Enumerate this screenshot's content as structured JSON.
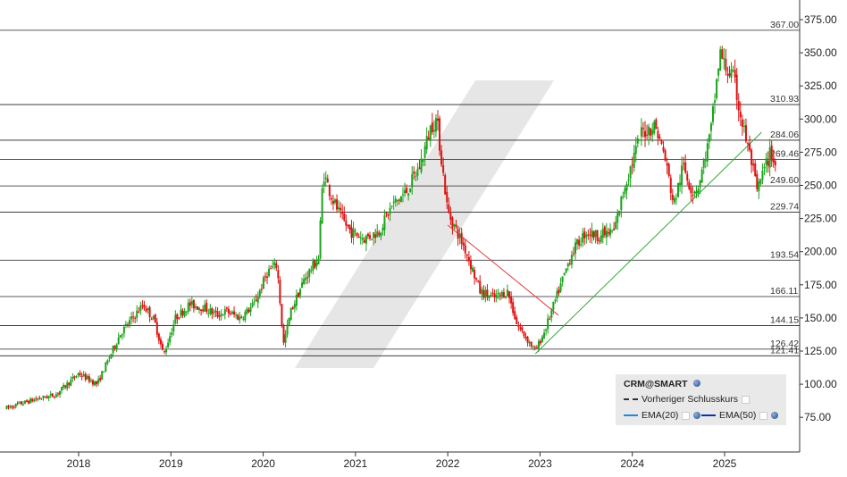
{
  "chart_data": {
    "type": "candlestick",
    "symbol": "CRM@SMART",
    "x_tick_labels": [
      "2018",
      "2019",
      "2020",
      "2021",
      "2022",
      "2023",
      "2024",
      "2025"
    ],
    "x_range": [
      2017.22,
      2025.82
    ],
    "y_tick_labels": [
      "75.00",
      "100.00",
      "125.00",
      "150.00",
      "175.00",
      "200.00",
      "225.00",
      "250.00",
      "275.00",
      "300.00",
      "325.00",
      "350.00",
      "375.00"
    ],
    "y_range": [
      57,
      385
    ],
    "grid": false,
    "horizontal_levels": [
      {
        "value": 367.0,
        "label": "367.00"
      },
      {
        "value": 310.93,
        "label": "310.93"
      },
      {
        "value": 284.06,
        "label": "284.06"
      },
      {
        "value": 269.46,
        "label": "269.46"
      },
      {
        "value": 249.6,
        "label": "249.60"
      },
      {
        "value": 229.74,
        "label": "229.74"
      },
      {
        "value": 193.54,
        "label": "193.54"
      },
      {
        "value": 166.11,
        "label": "166.11"
      },
      {
        "value": 144.15,
        "label": "144.15"
      },
      {
        "value": 126.42,
        "label": "126.42"
      },
      {
        "value": 121.41,
        "label": "121.41"
      }
    ],
    "trendlines": [
      {
        "color": "#e04040",
        "points": [
          [
            2022.0,
            220
          ],
          [
            2023.2,
            152
          ]
        ]
      },
      {
        "color": "#33aa33",
        "points": [
          [
            2022.95,
            123
          ],
          [
            2025.4,
            290
          ]
        ]
      }
    ],
    "price_path": [
      [
        2017.22,
        82
      ],
      [
        2017.5,
        88
      ],
      [
        2017.75,
        92
      ],
      [
        2018.0,
        108
      ],
      [
        2018.2,
        100
      ],
      [
        2018.45,
        138
      ],
      [
        2018.7,
        160
      ],
      [
        2018.82,
        148
      ],
      [
        2018.92,
        122
      ],
      [
        2019.05,
        150
      ],
      [
        2019.2,
        160
      ],
      [
        2019.35,
        158
      ],
      [
        2019.5,
        152
      ],
      [
        2019.6,
        155
      ],
      [
        2019.75,
        150
      ],
      [
        2019.9,
        160
      ],
      [
        2020.05,
        185
      ],
      [
        2020.15,
        190
      ],
      [
        2020.22,
        130
      ],
      [
        2020.3,
        155
      ],
      [
        2020.45,
        180
      ],
      [
        2020.6,
        195
      ],
      [
        2020.65,
        260
      ],
      [
        2020.75,
        240
      ],
      [
        2020.85,
        225
      ],
      [
        2020.95,
        215
      ],
      [
        2021.1,
        210
      ],
      [
        2021.25,
        215
      ],
      [
        2021.4,
        235
      ],
      [
        2021.55,
        245
      ],
      [
        2021.7,
        265
      ],
      [
        2021.82,
        295
      ],
      [
        2021.88,
        300
      ],
      [
        2022.0,
        230
      ],
      [
        2022.2,
        200
      ],
      [
        2022.35,
        170
      ],
      [
        2022.5,
        165
      ],
      [
        2022.65,
        170
      ],
      [
        2022.75,
        145
      ],
      [
        2022.95,
        125
      ],
      [
        2023.05,
        140
      ],
      [
        2023.2,
        170
      ],
      [
        2023.35,
        200
      ],
      [
        2023.5,
        215
      ],
      [
        2023.62,
        212
      ],
      [
        2023.8,
        215
      ],
      [
        2023.92,
        250
      ],
      [
        2024.1,
        290
      ],
      [
        2024.25,
        295
      ],
      [
        2024.35,
        272
      ],
      [
        2024.45,
        235
      ],
      [
        2024.55,
        265
      ],
      [
        2024.65,
        245
      ],
      [
        2024.72,
        250
      ],
      [
        2024.85,
        290
      ],
      [
        2024.95,
        350
      ],
      [
        2025.0,
        340
      ],
      [
        2025.1,
        330
      ],
      [
        2025.18,
        300
      ],
      [
        2025.3,
        265
      ],
      [
        2025.35,
        245
      ],
      [
        2025.42,
        260
      ],
      [
        2025.5,
        275
      ],
      [
        2025.55,
        265
      ]
    ]
  },
  "legend": {
    "title": "CRM@SMART",
    "items": [
      {
        "label": "Vorheriger Schlusskurs"
      },
      {
        "label": "EMA(20)"
      },
      {
        "label": "EMA(50)"
      }
    ]
  },
  "colors": {
    "up": "#1aa31a",
    "down": "#dd1111",
    "level": "#222222",
    "axis": "#333333",
    "watermark": "#e6e6e6"
  }
}
